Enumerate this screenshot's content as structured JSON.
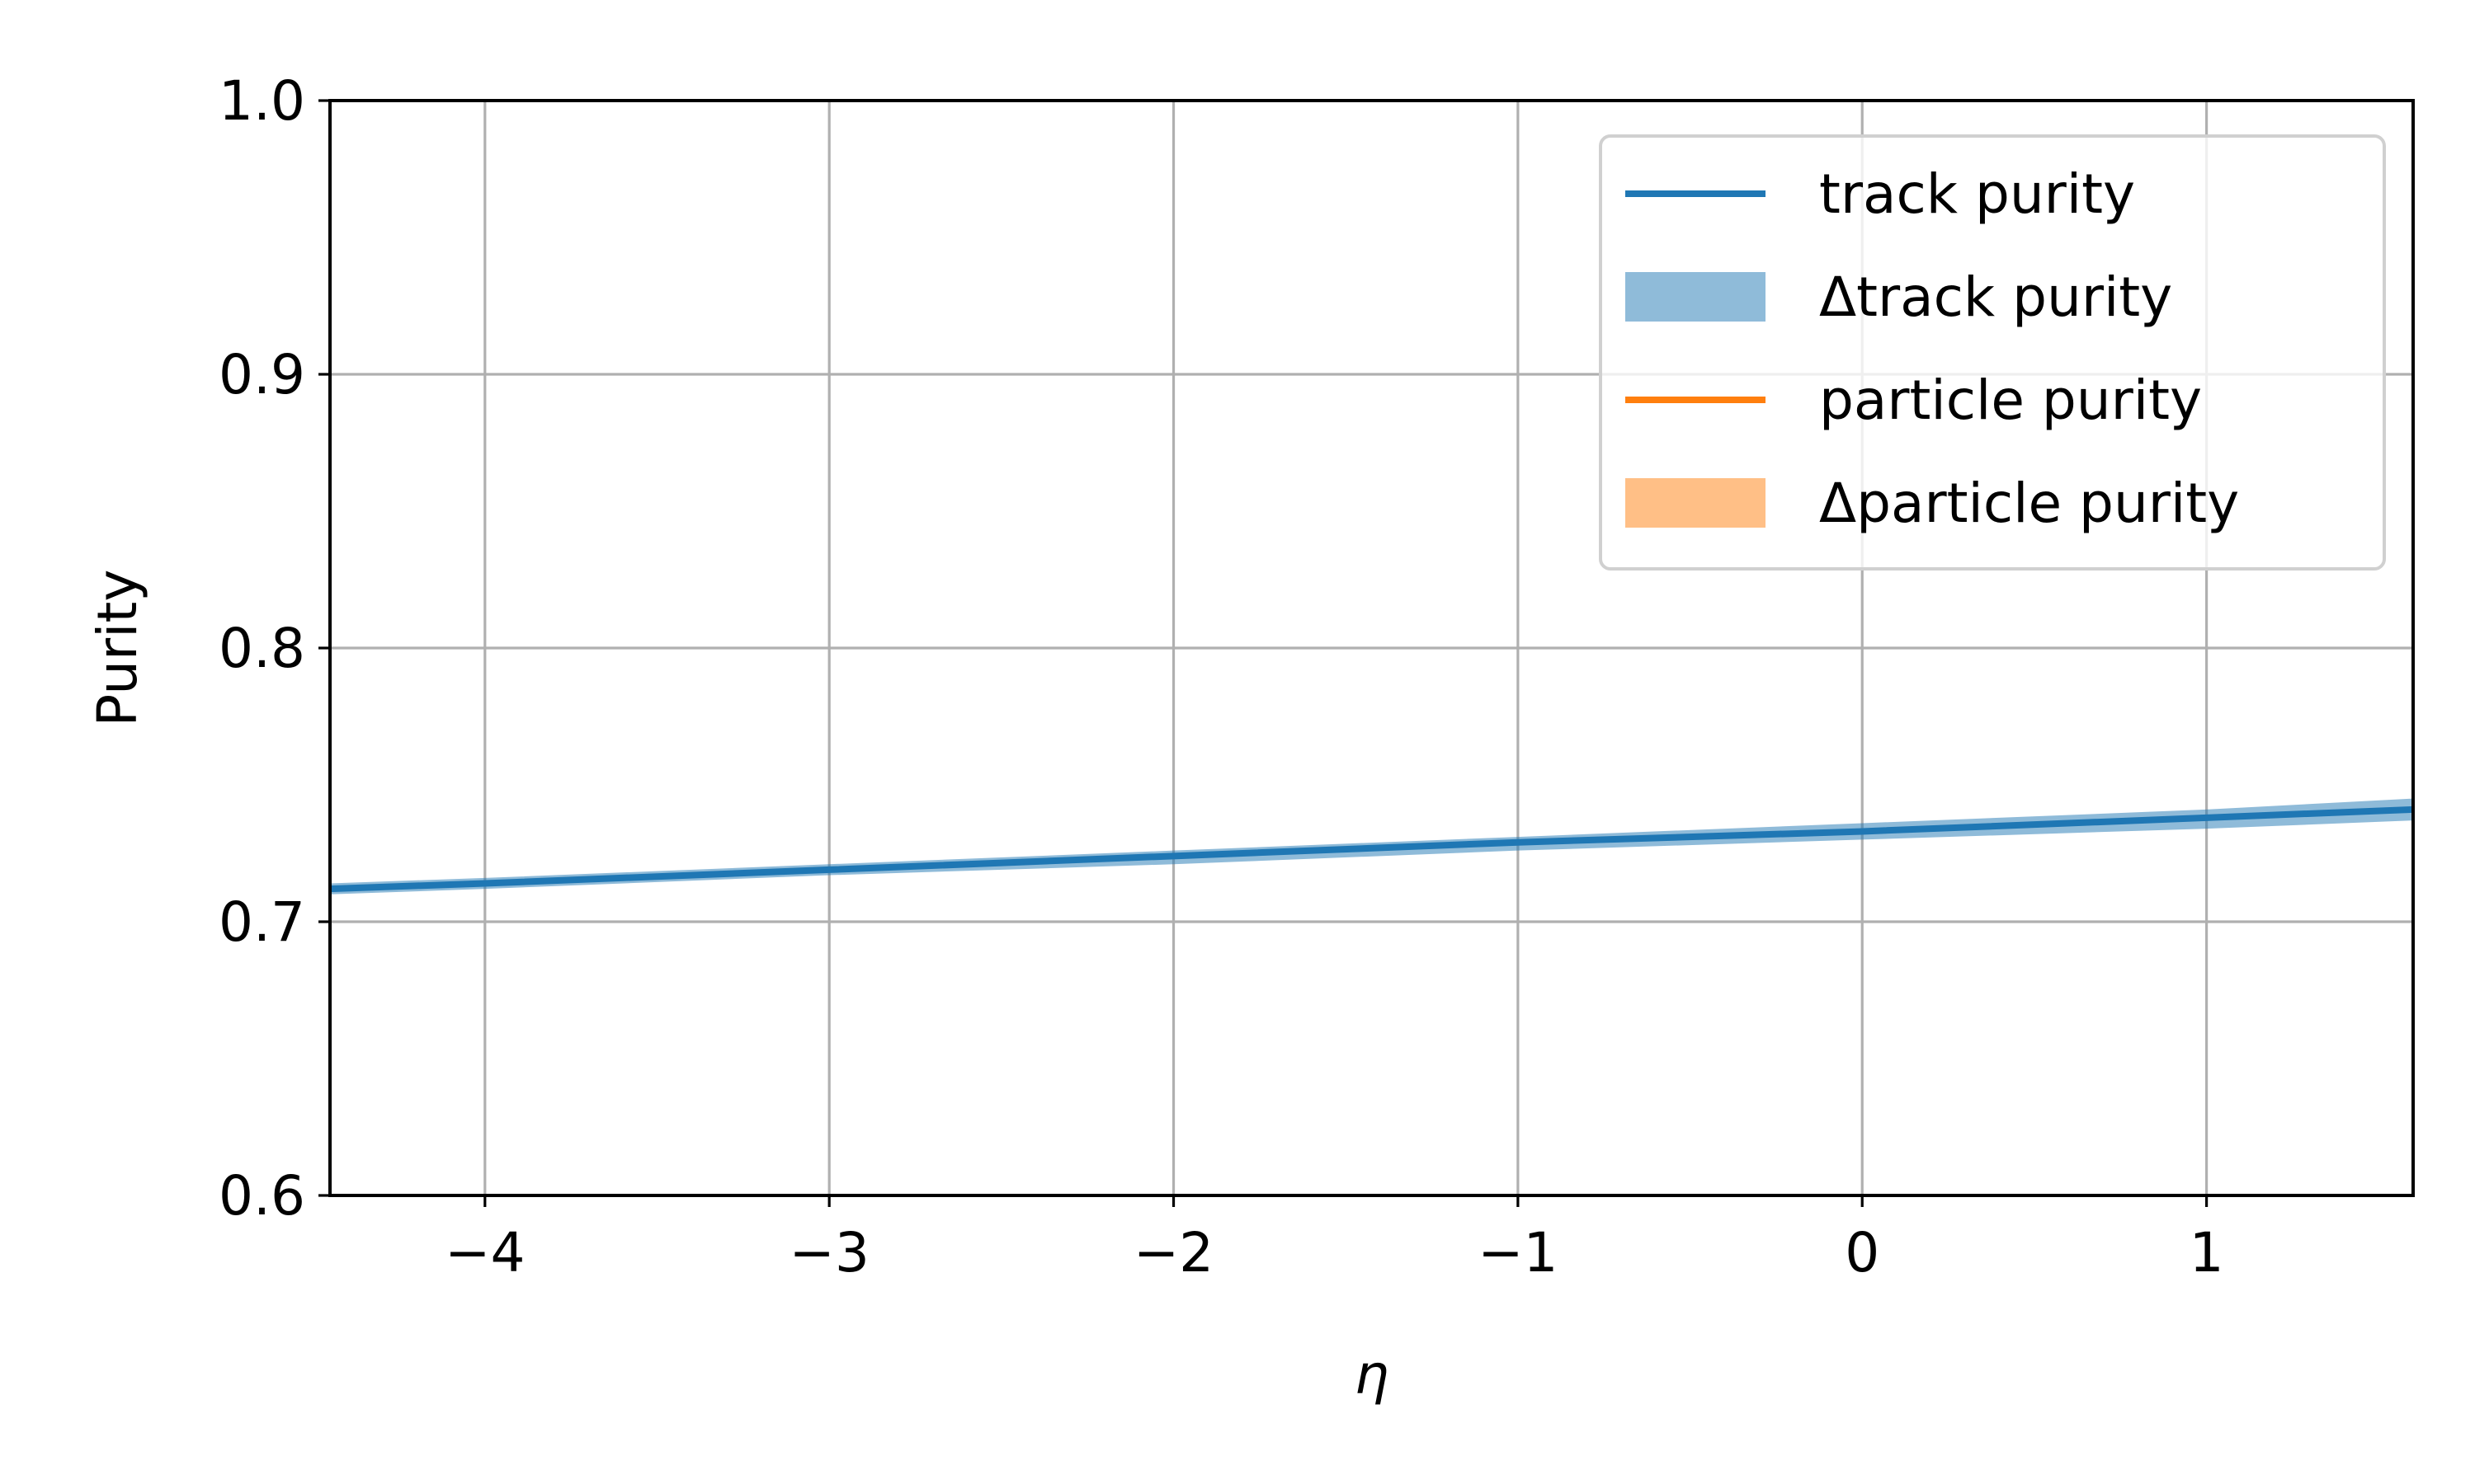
{
  "chart_data": {
    "type": "line",
    "xlabel": "η",
    "ylabel": "Purity",
    "xlim": [
      -4.45,
      1.6
    ],
    "ylim": [
      0.6,
      1.0
    ],
    "xticks": [
      -4,
      -3,
      -2,
      -1,
      0,
      1
    ],
    "xtick_labels": [
      "−4",
      "−3",
      "−2",
      "−1",
      "0",
      "1"
    ],
    "yticks": [
      0.6,
      0.7,
      0.8,
      0.9,
      1.0
    ],
    "ytick_labels": [
      "0.6",
      "0.7",
      "0.8",
      "0.9",
      "1.0"
    ],
    "grid": true,
    "legend_position": "top-right",
    "series": [
      {
        "name": "track purity",
        "kind": "line",
        "color": "#1f77b4",
        "x": [
          -4.45,
          -4,
          -3,
          -2,
          -1,
          0,
          1,
          1.6
        ],
        "y": [
          0.712,
          0.714,
          0.719,
          0.724,
          0.729,
          0.733,
          0.738,
          0.741
        ]
      },
      {
        "name": "Δtrack purity",
        "kind": "band",
        "color": "#1f77b4",
        "opacity": 0.5,
        "x": [
          -4.45,
          -4,
          -3,
          -2,
          -1,
          0,
          1,
          1.6
        ],
        "y_low": [
          0.71,
          0.712,
          0.717,
          0.721,
          0.726,
          0.73,
          0.734,
          0.737
        ],
        "y_high": [
          0.714,
          0.716,
          0.721,
          0.726,
          0.731,
          0.736,
          0.741,
          0.745
        ]
      },
      {
        "name": "particle purity",
        "kind": "line",
        "color": "#ff7f0e",
        "x": [],
        "y": []
      },
      {
        "name": "Δparticle purity",
        "kind": "band",
        "color": "#ff7f0e",
        "opacity": 0.5,
        "x": [],
        "y_low": [],
        "y_high": []
      }
    ]
  }
}
